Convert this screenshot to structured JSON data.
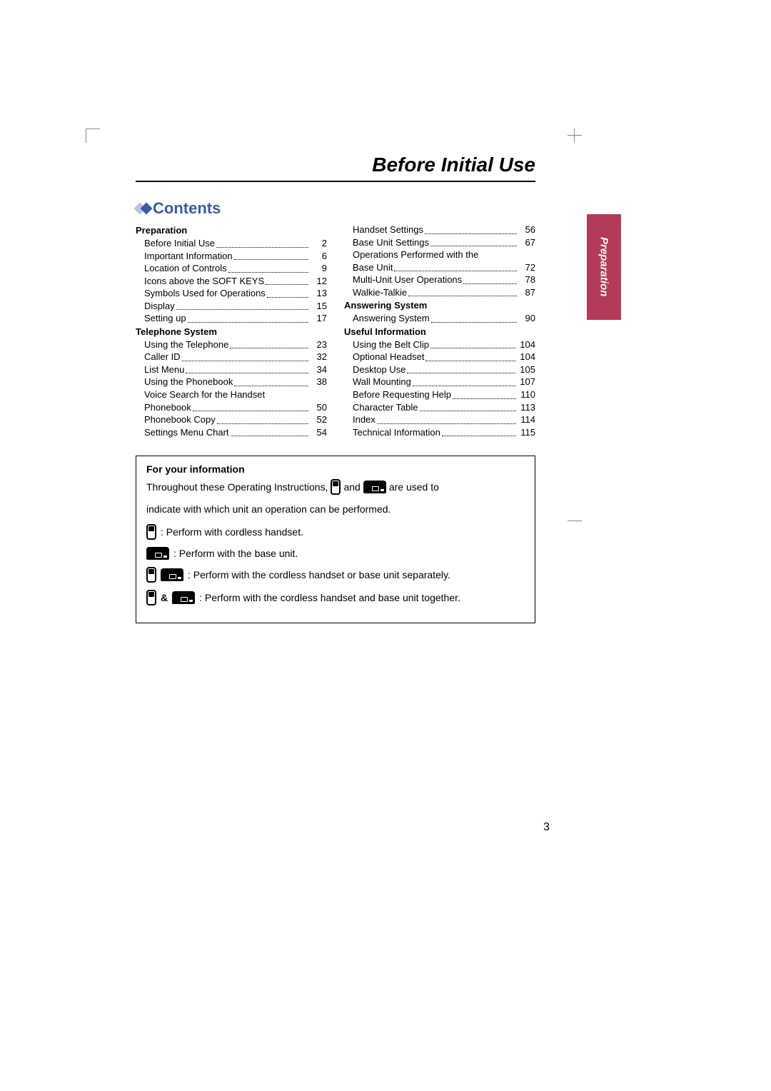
{
  "header": {
    "page_title": "Before Initial Use"
  },
  "contents_label": "Contents",
  "side_tab": "Preparation",
  "page_number": "3",
  "left_col": [
    {
      "type": "head",
      "text": "Preparation"
    },
    {
      "type": "item",
      "text": "Before Initial Use",
      "page": "2"
    },
    {
      "type": "item",
      "text": "Important Information",
      "page": "6"
    },
    {
      "type": "item",
      "text": "Location of Controls",
      "page": "9"
    },
    {
      "type": "item",
      "text": "Icons above the SOFT KEYS",
      "page": "12"
    },
    {
      "type": "item",
      "text": "Symbols Used for Operations",
      "page": "13"
    },
    {
      "type": "item",
      "text": "Display",
      "page": "15"
    },
    {
      "type": "item",
      "text": "Setting up",
      "page": "17"
    },
    {
      "type": "head",
      "text": "Telephone System"
    },
    {
      "type": "item",
      "text": "Using the Telephone",
      "page": "23"
    },
    {
      "type": "item",
      "text": "Caller ID",
      "page": "32"
    },
    {
      "type": "item",
      "text": "List Menu",
      "page": "34"
    },
    {
      "type": "item",
      "text": "Using the Phonebook",
      "page": "38"
    },
    {
      "type": "wrap",
      "text": "Voice Search for the Handset"
    },
    {
      "type": "item",
      "text": "Phonebook",
      "page": "50"
    },
    {
      "type": "item",
      "text": "Phonebook Copy",
      "page": "52"
    },
    {
      "type": "item",
      "text": "Settings Menu Chart",
      "page": "54"
    }
  ],
  "right_col": [
    {
      "type": "item",
      "text": "Handset Settings",
      "page": "56"
    },
    {
      "type": "item",
      "text": "Base Unit Settings",
      "page": "67"
    },
    {
      "type": "wrap",
      "text": "Operations Performed with the"
    },
    {
      "type": "item",
      "text": "Base Unit",
      "page": "72"
    },
    {
      "type": "item",
      "text": "Multi-Unit User Operations",
      "page": "78"
    },
    {
      "type": "item",
      "text": "Walkie-Talkie",
      "page": "87"
    },
    {
      "type": "head",
      "text": "Answering System"
    },
    {
      "type": "item",
      "text": "Answering System",
      "page": "90"
    },
    {
      "type": "head",
      "text": "Useful Information"
    },
    {
      "type": "item",
      "text": "Using the Belt Clip",
      "page": "104"
    },
    {
      "type": "item",
      "text": "Optional Headset",
      "page": "104"
    },
    {
      "type": "item",
      "text": "Desktop Use",
      "page": "105"
    },
    {
      "type": "item",
      "text": "Wall Mounting",
      "page": "107"
    },
    {
      "type": "item",
      "text": "Before Requesting Help",
      "page": "110"
    },
    {
      "type": "item",
      "text": "Character Table",
      "page": "113"
    },
    {
      "type": "item",
      "text": "Index",
      "page": "114"
    },
    {
      "type": "item",
      "text": "Technical Information",
      "page": "115"
    }
  ],
  "info": {
    "head": "For your information",
    "intro_1": "Throughout these Operating Instructions,",
    "intro_and": "and",
    "intro_2": "are used to",
    "intro_3": "indicate with which unit an operation can be performed.",
    "handset_desc": ": Perform with cordless handset.",
    "base_desc": ": Perform with the base unit.",
    "either_desc": ": Perform with the cordless handset or base unit separately.",
    "both_amp": "&",
    "both_desc": ": Perform with the cordless handset and base unit together."
  },
  "colors": {
    "accent_blue": "#3a5aa8",
    "tab_red": "#b43a5a"
  }
}
